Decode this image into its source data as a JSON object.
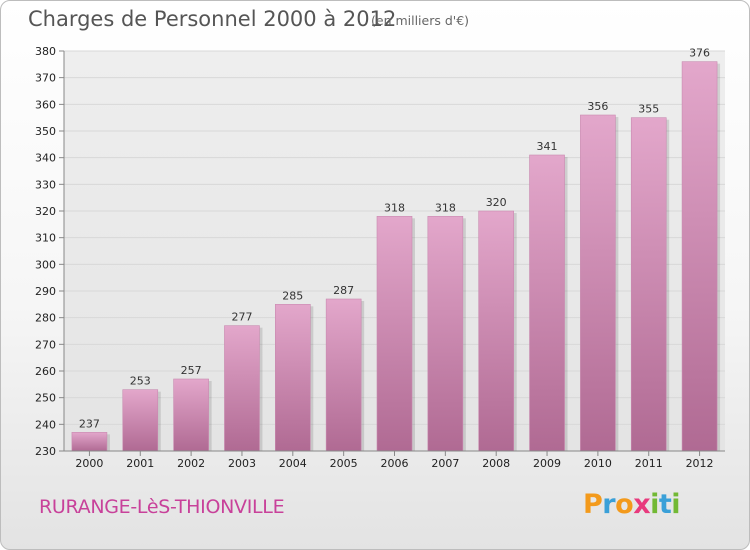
{
  "header": {
    "title": "Charges de Personnel 2000 à 2012",
    "subtitle": "(en milliers d'€)"
  },
  "footer": {
    "commune": "RURANGE-LèS-THIONVILLE",
    "logo_letters": [
      "P",
      "r",
      "o",
      "x",
      "i",
      "t",
      "i"
    ],
    "logo_colors": [
      "#f39a1c",
      "#3aa0d8",
      "#f39a1c",
      "#e83a7d",
      "#72b935",
      "#3aa0d8",
      "#72b935"
    ]
  },
  "colors": {
    "bar_light": "#e3a7cb",
    "bar_dark": "#b06a93",
    "grid": "#d8d8d8"
  },
  "chart_data": {
    "type": "bar",
    "title": "Charges de Personnel 2000 à 2012",
    "subtitle": "(en milliers d'€)",
    "xlabel": "",
    "ylabel": "",
    "categories": [
      "2000",
      "2001",
      "2002",
      "2003",
      "2004",
      "2005",
      "2006",
      "2007",
      "2008",
      "2009",
      "2010",
      "2011",
      "2012"
    ],
    "values": [
      237,
      253,
      257,
      277,
      285,
      287,
      318,
      318,
      320,
      341,
      356,
      355,
      376
    ],
    "data_labels": [
      "237",
      "253",
      "257",
      "277",
      "285",
      "287",
      "318",
      "318",
      "320",
      "341",
      "356",
      "355",
      "376"
    ],
    "ylim": [
      230,
      380
    ],
    "yticks": [
      230,
      240,
      250,
      260,
      270,
      280,
      290,
      300,
      310,
      320,
      330,
      340,
      350,
      360,
      370,
      380
    ],
    "grid": true,
    "legend": "none"
  }
}
